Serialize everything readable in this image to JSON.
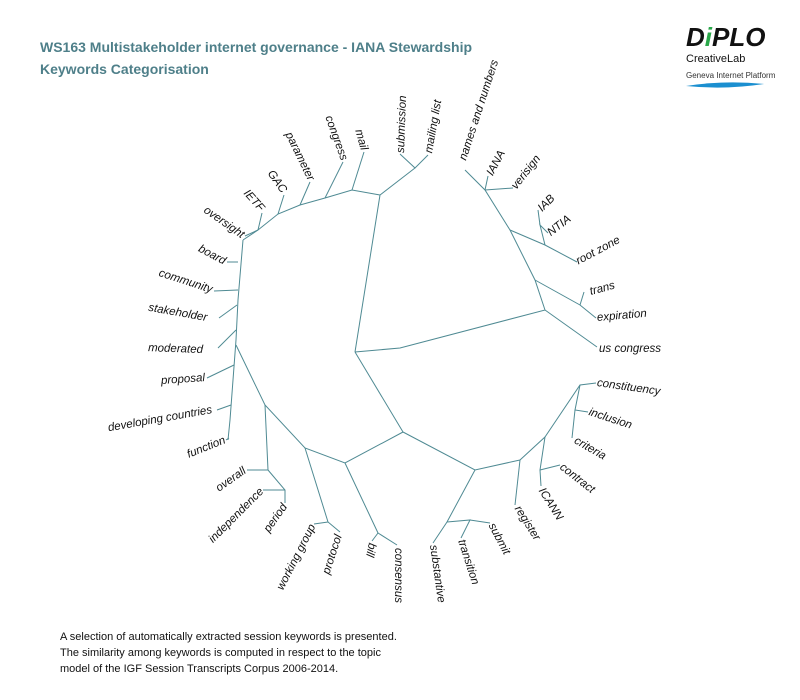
{
  "header": {
    "title_lines": [
      "WS163 Multistakeholder internet governance - IANA Stewardship",
      "Keywords Categorisation"
    ]
  },
  "logo": {
    "wordmark": [
      "D",
      "i",
      "PLO"
    ],
    "lab": "CreativeLab",
    "platform": "Geneva Internet Platform"
  },
  "keywords": [
    "names and numbers",
    "IANA",
    "verisign",
    "IAB",
    "NTIA",
    "root zone",
    "trans",
    "expiration",
    "us congress",
    "constituency",
    "inclusion",
    "criteria",
    "contract",
    "ICANN",
    "register",
    "submit",
    "transition",
    "substantive",
    "consensus",
    "bill",
    "protocol",
    "working group",
    "period",
    "independence",
    "overall",
    "function",
    "developing countries",
    "proposal",
    "moderated",
    "stakeholder",
    "community",
    "board",
    "oversight",
    "IETF",
    "GAC",
    "parameter",
    "congress",
    "mail",
    "submission",
    "mailing list"
  ],
  "footnote": [
    "A selection of automatically extracted session keywords is presented.",
    "The similarity among keywords is computed in respect to the topic",
    "model of the IGF Session Transcripts Corpus 2006-2014."
  ]
}
